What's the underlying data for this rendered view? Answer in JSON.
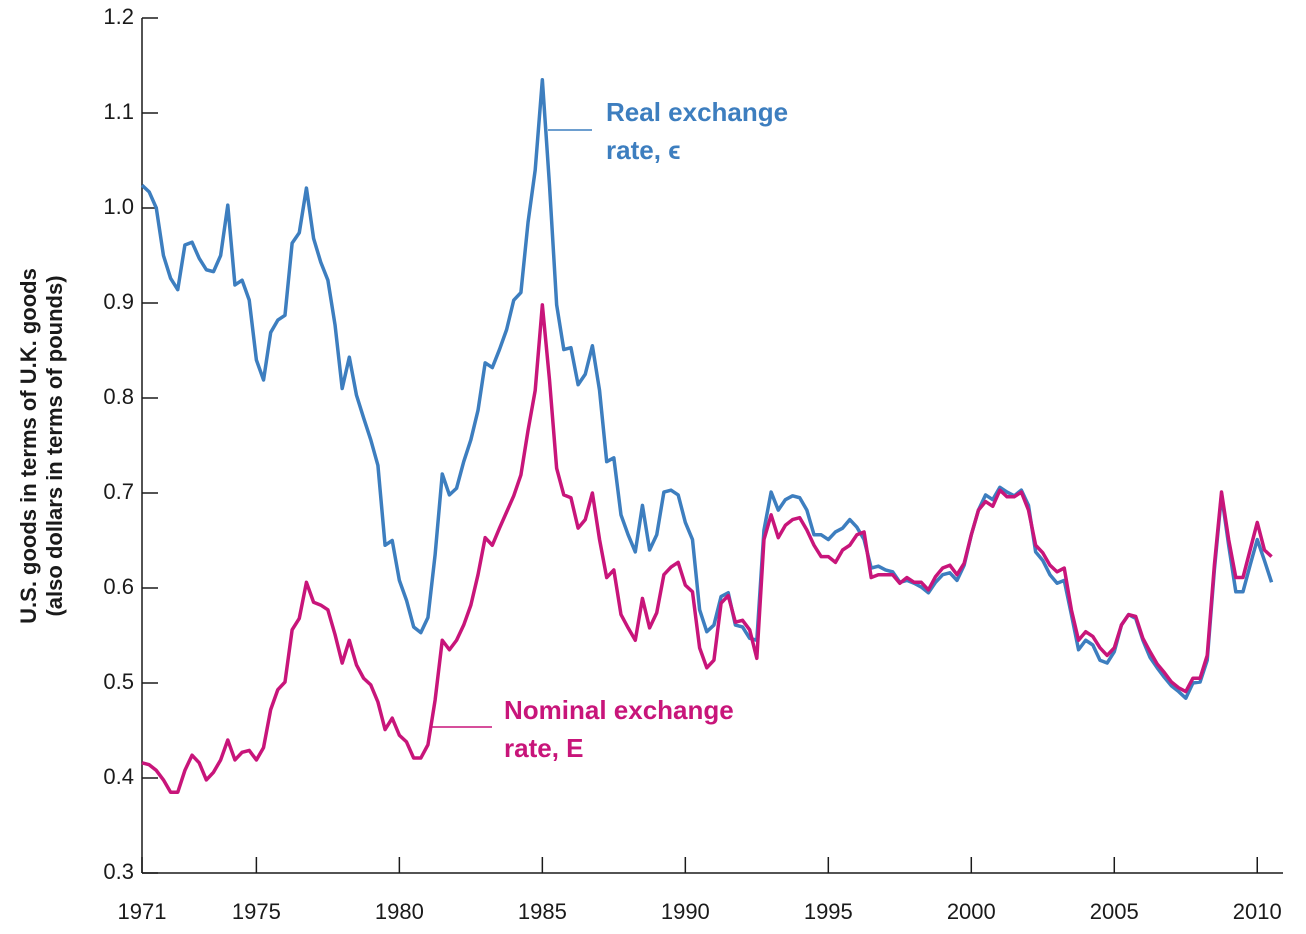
{
  "chart_data": {
    "type": "line",
    "y_label": [
      "U.S. goods in terms of U.K. goods",
      "(also dollars in terms of pounds)"
    ],
    "annotations": [
      {
        "lines": [
          "Real exchange",
          "rate, ϵ"
        ],
        "color": "#3d7ebf"
      },
      {
        "lines": [
          "Nominal exchange",
          "rate, E"
        ],
        "color": "#c8157a"
      }
    ],
    "xlim": [
      1971,
      2010.9
    ],
    "xticks": [
      1971,
      1975,
      1980,
      1985,
      1990,
      1995,
      2000,
      2005,
      2010
    ],
    "ylim": [
      0.3,
      1.2
    ],
    "yticks": [
      0.3,
      0.4,
      0.5,
      0.6,
      0.7,
      0.8,
      0.9,
      {
        "value": 1,
        "label": "1.0"
      },
      1.1,
      1.2
    ],
    "x": [
      1971,
      1971.25,
      1971.5,
      1971.75,
      1972,
      1972.25,
      1972.5,
      1972.75,
      1973,
      1973.25,
      1973.5,
      1973.75,
      1974,
      1974.25,
      1974.5,
      1974.75,
      1975,
      1975.25,
      1975.5,
      1975.75,
      1976,
      1976.25,
      1976.5,
      1976.75,
      1977,
      1977.25,
      1977.5,
      1977.75,
      1978,
      1978.25,
      1978.5,
      1978.75,
      1979,
      1979.25,
      1979.5,
      1979.75,
      1980,
      1980.25,
      1980.5,
      1980.75,
      1981,
      1981.25,
      1981.5,
      1981.75,
      1982,
      1982.25,
      1982.5,
      1982.75,
      1983,
      1983.25,
      1983.5,
      1983.75,
      1984,
      1984.25,
      1984.5,
      1984.75,
      1985,
      1985.25,
      1985.5,
      1985.75,
      1986,
      1986.25,
      1986.5,
      1986.75,
      1987,
      1987.25,
      1987.5,
      1987.75,
      1988,
      1988.25,
      1988.5,
      1988.75,
      1989,
      1989.25,
      1989.5,
      1989.75,
      1990,
      1990.25,
      1990.5,
      1990.75,
      1991,
      1991.25,
      1991.5,
      1991.75,
      1992,
      1992.25,
      1992.5,
      1992.75,
      1993,
      1993.25,
      1993.5,
      1993.75,
      1994,
      1994.25,
      1994.5,
      1994.75,
      1995,
      1995.25,
      1995.5,
      1995.75,
      1996,
      1996.25,
      1996.5,
      1996.75,
      1997,
      1997.25,
      1997.5,
      1997.75,
      1998,
      1998.25,
      1998.5,
      1998.75,
      1999,
      1999.25,
      1999.5,
      1999.75,
      2000,
      2000.25,
      2000.5,
      2000.75,
      2001,
      2001.25,
      2001.5,
      2001.75,
      2002,
      2002.25,
      2002.5,
      2002.75,
      2003,
      2003.25,
      2003.5,
      2003.75,
      2004,
      2004.25,
      2004.5,
      2004.75,
      2005,
      2005.25,
      2005.5,
      2005.75,
      2006,
      2006.25,
      2006.5,
      2006.75,
      2007,
      2007.25,
      2007.5,
      2007.75,
      2008,
      2008.25,
      2008.5,
      2008.75,
      2009,
      2009.25,
      2009.5,
      2009.75,
      2010,
      2010.25,
      2010.5
    ],
    "series": [
      {
        "name": "Real exchange rate",
        "color": "#3d7ebf",
        "values": [
          1.024,
          1.017,
          1.0,
          0.95,
          0.926,
          0.914,
          0.961,
          0.964,
          0.947,
          0.935,
          0.933,
          0.95,
          1.003,
          0.919,
          0.924,
          0.903,
          0.84,
          0.819,
          0.869,
          0.882,
          0.887,
          0.963,
          0.974,
          1.021,
          0.968,
          0.943,
          0.924,
          0.877,
          0.81,
          0.843,
          0.803,
          0.779,
          0.756,
          0.729,
          0.645,
          0.65,
          0.608,
          0.587,
          0.559,
          0.553,
          0.569,
          0.635,
          0.72,
          0.698,
          0.705,
          0.733,
          0.756,
          0.787,
          0.837,
          0.832,
          0.851,
          0.872,
          0.903,
          0.911,
          0.985,
          1.04,
          1.135,
          1.024,
          0.898,
          0.851,
          0.853,
          0.814,
          0.825,
          0.855,
          0.808,
          0.733,
          0.737,
          0.677,
          0.656,
          0.638,
          0.687,
          0.64,
          0.656,
          0.701,
          0.703,
          0.698,
          0.669,
          0.651,
          0.577,
          0.554,
          0.561,
          0.591,
          0.595,
          0.561,
          0.559,
          0.547,
          0.545,
          0.661,
          0.701,
          0.682,
          0.693,
          0.697,
          0.695,
          0.682,
          0.656,
          0.656,
          0.651,
          0.659,
          0.663,
          0.672,
          0.664,
          0.651,
          0.621,
          0.623,
          0.619,
          0.617,
          0.606,
          0.608,
          0.605,
          0.601,
          0.595,
          0.606,
          0.614,
          0.616,
          0.608,
          0.624,
          0.656,
          0.682,
          0.698,
          0.693,
          0.706,
          0.701,
          0.697,
          0.703,
          0.687,
          0.638,
          0.629,
          0.614,
          0.605,
          0.608,
          0.572,
          0.535,
          0.545,
          0.54,
          0.524,
          0.521,
          0.533,
          0.561,
          0.572,
          0.568,
          0.545,
          0.527,
          0.516,
          0.506,
          0.497,
          0.491,
          0.484,
          0.5,
          0.501,
          0.524,
          0.619,
          0.698,
          0.645,
          0.596,
          0.596,
          0.624,
          0.651,
          0.629,
          0.606
        ]
      },
      {
        "name": "Nominal exchange rate",
        "color": "#c8157a",
        "values": [
          0.416,
          0.414,
          0.408,
          0.398,
          0.385,
          0.385,
          0.408,
          0.424,
          0.416,
          0.398,
          0.406,
          0.419,
          0.44,
          0.419,
          0.427,
          0.429,
          0.419,
          0.432,
          0.472,
          0.493,
          0.501,
          0.556,
          0.568,
          0.606,
          0.585,
          0.582,
          0.577,
          0.551,
          0.521,
          0.545,
          0.519,
          0.505,
          0.498,
          0.48,
          0.451,
          0.463,
          0.445,
          0.438,
          0.421,
          0.421,
          0.435,
          0.482,
          0.545,
          0.535,
          0.545,
          0.561,
          0.582,
          0.614,
          0.653,
          0.645,
          0.663,
          0.68,
          0.697,
          0.719,
          0.766,
          0.808,
          0.898,
          0.819,
          0.726,
          0.698,
          0.695,
          0.663,
          0.672,
          0.7,
          0.651,
          0.611,
          0.619,
          0.572,
          0.558,
          0.545,
          0.589,
          0.558,
          0.574,
          0.614,
          0.622,
          0.627,
          0.603,
          0.596,
          0.537,
          0.516,
          0.524,
          0.584,
          0.592,
          0.564,
          0.566,
          0.556,
          0.526,
          0.651,
          0.677,
          0.653,
          0.666,
          0.672,
          0.674,
          0.661,
          0.645,
          0.633,
          0.633,
          0.627,
          0.64,
          0.645,
          0.656,
          0.659,
          0.611,
          0.614,
          0.614,
          0.614,
          0.605,
          0.611,
          0.606,
          0.606,
          0.598,
          0.612,
          0.621,
          0.624,
          0.614,
          0.626,
          0.656,
          0.682,
          0.691,
          0.686,
          0.703,
          0.696,
          0.696,
          0.701,
          0.682,
          0.645,
          0.637,
          0.624,
          0.617,
          0.621,
          0.577,
          0.545,
          0.554,
          0.549,
          0.537,
          0.529,
          0.537,
          0.561,
          0.572,
          0.57,
          0.547,
          0.533,
          0.52,
          0.511,
          0.501,
          0.495,
          0.491,
          0.505,
          0.505,
          0.529,
          0.624,
          0.701,
          0.651,
          0.611,
          0.611,
          0.64,
          0.669,
          0.64,
          0.633
        ]
      }
    ]
  }
}
